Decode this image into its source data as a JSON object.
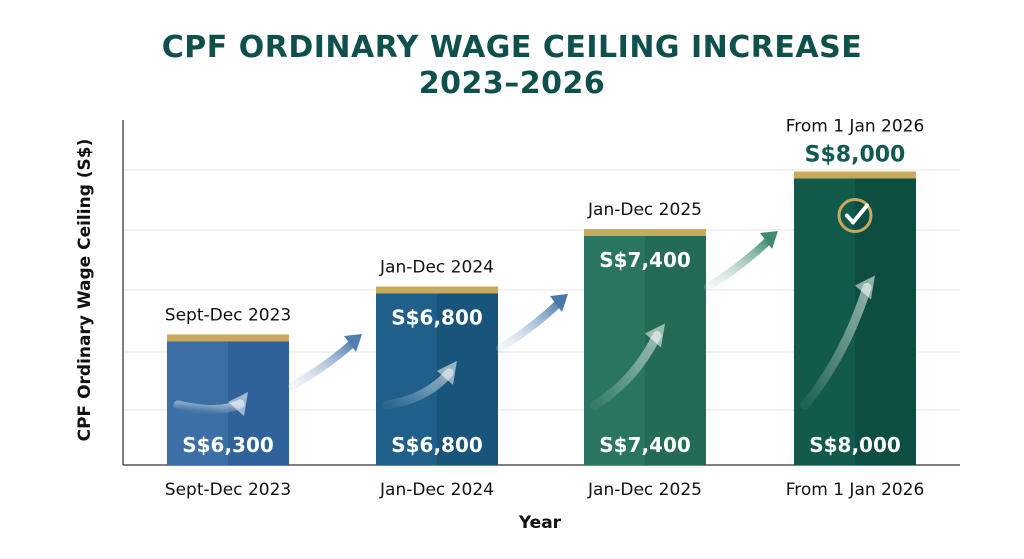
{
  "chart_data": {
    "type": "bar",
    "title_line1": "CPF ORDINARY WAGE CEILING INCREASE",
    "title_line2": "2023–2026",
    "xlabel": "Year",
    "ylabel": "CPF Ordinary Wage Ceiling (S$)",
    "ylim": [
      5000,
      8600
    ],
    "grid": true,
    "categories": [
      "Sept-Dec 2023",
      "Jan-Dec 2024",
      "Jan-Dec 2025",
      "From 1 Jan 2026"
    ],
    "values": [
      6300,
      6800,
      7400,
      8000
    ],
    "bar_top_labels": [
      "Sept-Dec 2023",
      "Jan-Dec 2024",
      "Jan-Dec 2025",
      "From 1 Jan 2026"
    ],
    "bar_inner_top_values": [
      "",
      "S$6,800",
      "S$7,400",
      ""
    ],
    "above_bar_value": "S$8,000",
    "bar_bottom_values": [
      "S$6,300",
      "S$6,800",
      "S$7,400",
      "S$8,000"
    ],
    "colors": {
      "bars": [
        "#3b6fa5",
        "#1f5f8a",
        "#2a7560",
        "#125a4c"
      ],
      "bars_dark": [
        "#2f609a",
        "#185378",
        "#236a55",
        "#0d4d41"
      ],
      "cap": "#c9a95a",
      "title": "#0f4f4c",
      "arrow": "#5f89b0"
    },
    "icons": [
      "trend-arrow-icon",
      "check-circle-icon"
    ]
  }
}
